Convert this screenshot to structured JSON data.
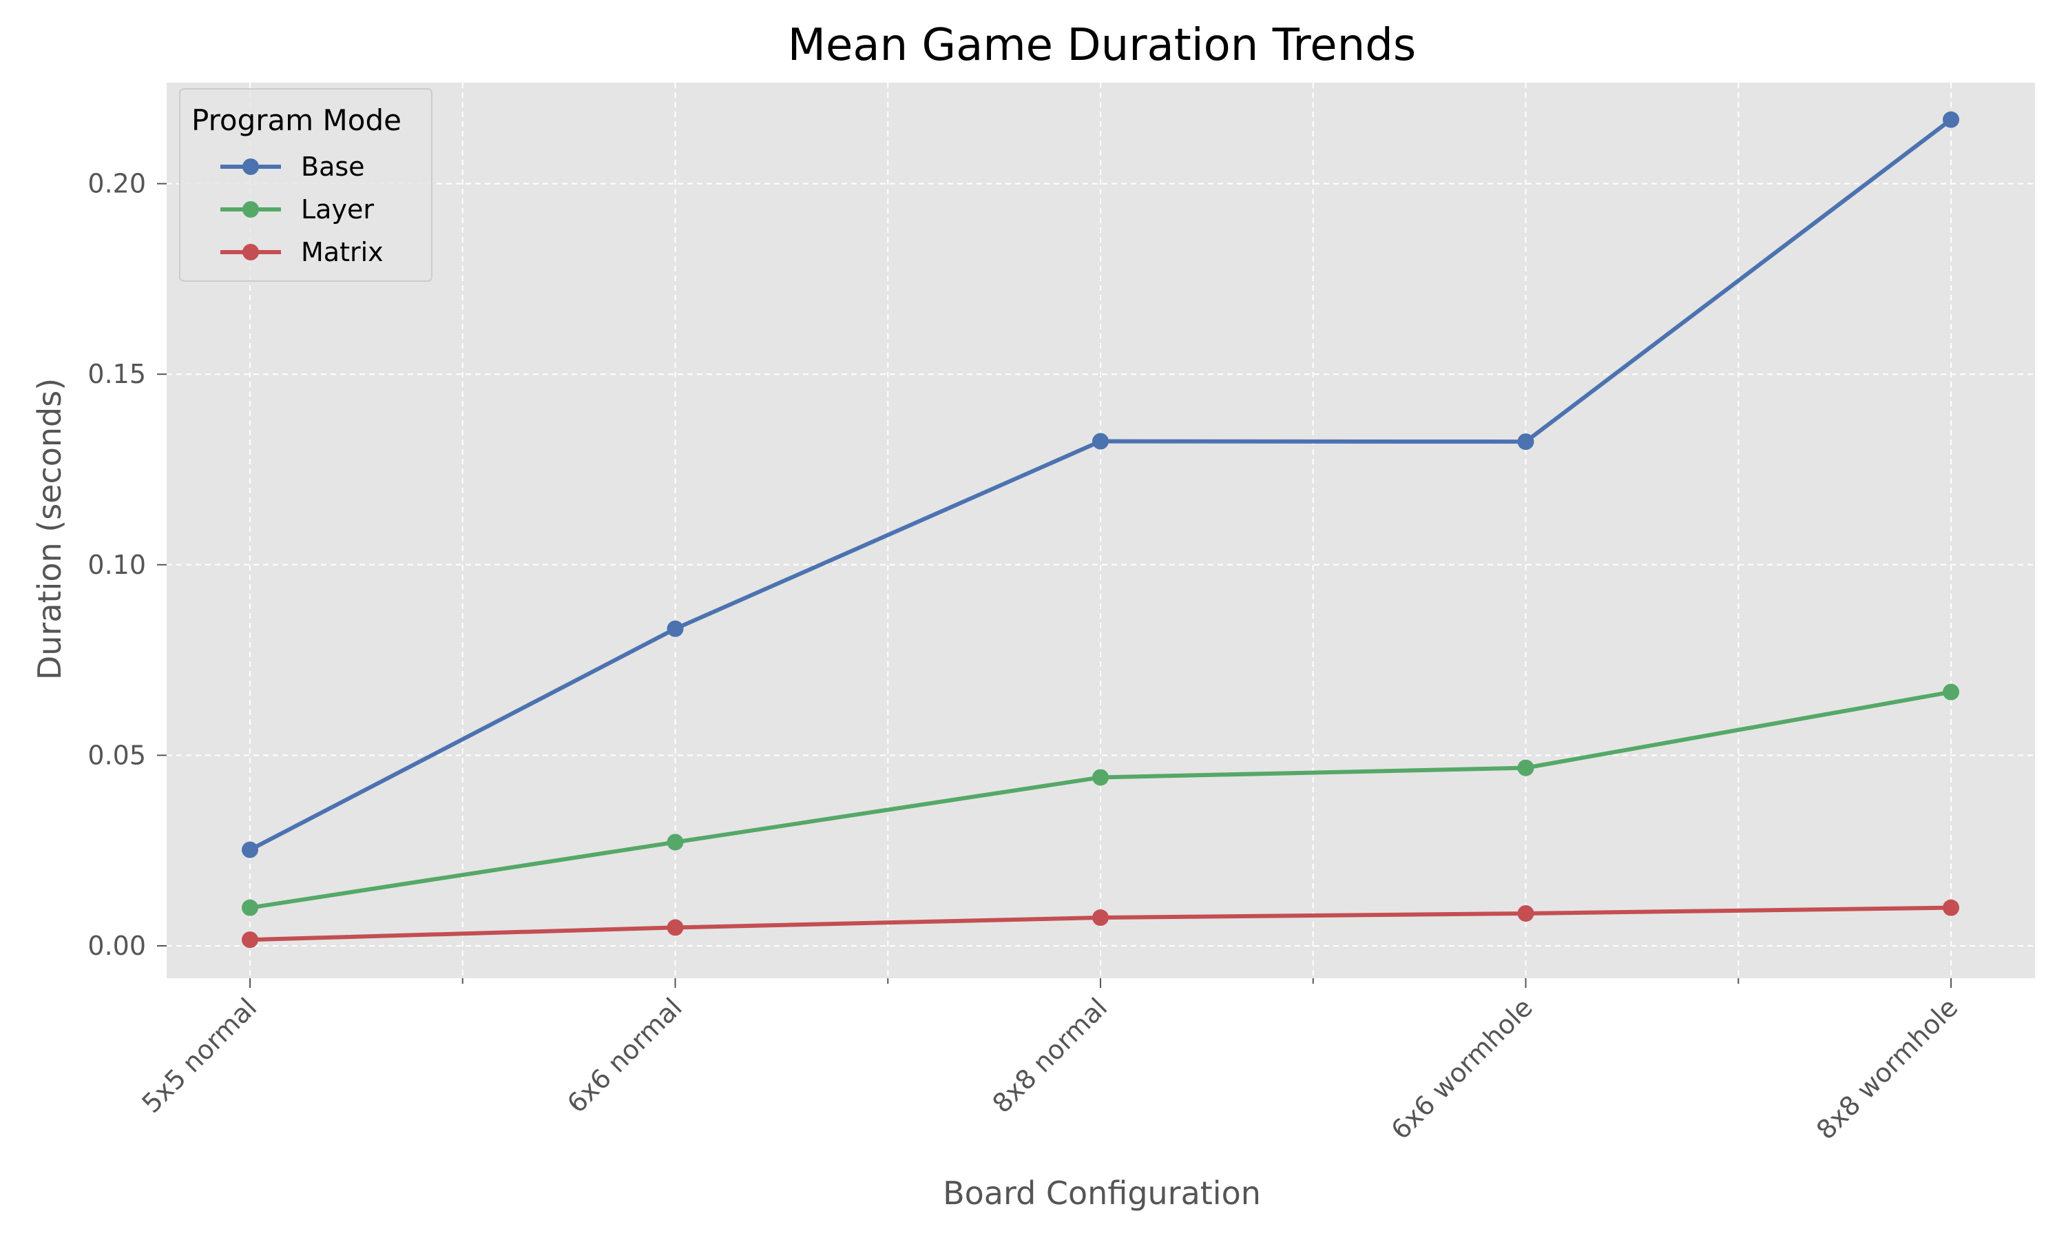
{
  "chart_data": {
    "type": "line",
    "title": "Mean Game Duration Trends",
    "xlabel": "Board Configuration",
    "ylabel": "Duration (seconds)",
    "categories": [
      "5x5 normal",
      "6x6 normal",
      "8x8 normal",
      "6x6 wormhole",
      "8x8 wormhole"
    ],
    "ylim": [
      -0.0085,
      0.2265
    ],
    "yticks": [
      0.0,
      0.05,
      0.1,
      0.15,
      0.2
    ],
    "ytick_labels": [
      "0.00",
      "0.05",
      "0.10",
      "0.15",
      "0.20"
    ],
    "grid": true,
    "legend": {
      "title": "Program Mode",
      "placement": "top-left"
    },
    "series": [
      {
        "name": "Base",
        "color": "#4c72b0",
        "values": [
          0.0252,
          0.0832,
          0.1324,
          0.1323,
          0.2168
        ]
      },
      {
        "name": "Layer",
        "color": "#55a868",
        "values": [
          0.01,
          0.0272,
          0.0442,
          0.0467,
          0.0666
        ]
      },
      {
        "name": "Matrix",
        "color": "#c44e52",
        "values": [
          0.0016,
          0.0048,
          0.0074,
          0.0085,
          0.01
        ]
      }
    ],
    "colors": {
      "plot_background": "#e5e5e5",
      "grid": "#ffffff",
      "text": "#555555"
    }
  }
}
